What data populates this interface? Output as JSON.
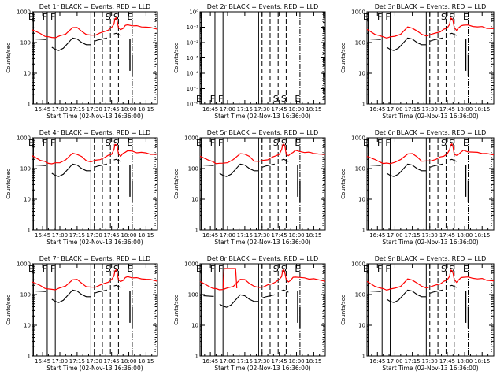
{
  "chart_data": {
    "type": "line",
    "panel_count": 9,
    "layout": "3x3 grid",
    "x_tick_labels": [
      "16:45",
      "17:00",
      "17:15",
      "17:30",
      "17:45",
      "18:00",
      "18:15"
    ],
    "x_ticks_minutes": [
      0,
      15,
      30,
      45,
      60,
      75,
      90
    ],
    "x_range_minutes_after_1645": [
      -9,
      100
    ],
    "xlabel": "Start Time (02-Nov-13 16:36:00)",
    "ylabel": "Counts/sec",
    "y_scale": "log",
    "series_colors": {
      "events": "#000000",
      "lld": "#ff0000"
    },
    "markers": [
      {
        "label": "E",
        "t": -8,
        "style": "solid"
      },
      {
        "label": "F",
        "t": 4,
        "style": "solid"
      },
      {
        "label": "F",
        "t": 11,
        "style": "solid"
      },
      {
        "label": "",
        "t": 42,
        "style": "solid"
      },
      {
        "label": "",
        "t": 45,
        "style": "dashed"
      },
      {
        "label": "",
        "t": 52,
        "style": "dashed"
      },
      {
        "label": "S",
        "t": 59,
        "style": "dashed"
      },
      {
        "label": "S",
        "t": 66,
        "style": "dashed"
      },
      {
        "label": "E",
        "t": 78,
        "style": "dashdot"
      },
      {
        "label": "",
        "t": 98,
        "style": "dotted"
      }
    ],
    "panels": [
      {
        "title": "Det 1r  BLACK = Events, RED = LLD",
        "ylim": [
          1,
          1000
        ],
        "ytick_labels": [
          "1",
          "10",
          "100",
          "1000"
        ],
        "has_data": true,
        "variant": "normal"
      },
      {
        "title": "Det 2r  BLACK = Events, RED = LLD",
        "ylim": [
          1e-06,
          1
        ],
        "ytick_labels": [
          "10⁻⁶",
          "10⁻⁵",
          "10⁻⁴",
          "10⁻³",
          "10⁻²",
          "10⁻¹",
          "10⁰"
        ],
        "has_data": false,
        "variant": "empty"
      },
      {
        "title": "Det 3r  BLACK = Events, RED = LLD",
        "ylim": [
          1,
          1000
        ],
        "ytick_labels": [
          "1",
          "10",
          "100",
          "1000"
        ],
        "has_data": true,
        "variant": "normal"
      },
      {
        "title": "Det 4r  BLACK = Events, RED = LLD",
        "ylim": [
          1,
          1000
        ],
        "ytick_labels": [
          "1",
          "10",
          "100",
          "1000"
        ],
        "has_data": true,
        "variant": "normal"
      },
      {
        "title": "Det 5r  BLACK = Events, RED = LLD",
        "ylim": [
          1,
          1000
        ],
        "ytick_labels": [
          "1",
          "10",
          "100",
          "1000"
        ],
        "has_data": true,
        "variant": "normal"
      },
      {
        "title": "Det 6r  BLACK = Events, RED = LLD",
        "ylim": [
          1,
          1000
        ],
        "ytick_labels": [
          "1",
          "10",
          "100",
          "1000"
        ],
        "has_data": true,
        "variant": "normal"
      },
      {
        "title": "Det 7r  BLACK = Events, RED = LLD",
        "ylim": [
          1,
          1000
        ],
        "ytick_labels": [
          "1",
          "10",
          "100",
          "1000"
        ],
        "has_data": true,
        "variant": "normal"
      },
      {
        "title": "Det 8r  BLACK = Events, RED = LLD",
        "ylim": [
          1,
          1000
        ],
        "ytick_labels": [
          "1",
          "10",
          "100",
          "1000"
        ],
        "has_data": true,
        "variant": "det8"
      },
      {
        "title": "Det 9r  BLACK = Events, RED = LLD",
        "ylim": [
          1,
          1000
        ],
        "ytick_labels": [
          "1",
          "10",
          "100",
          "1000"
        ],
        "has_data": true,
        "variant": "normal"
      }
    ],
    "lld_shape": {
      "t": [
        -9,
        -2,
        2,
        5,
        8,
        11,
        15,
        20,
        26,
        30,
        34,
        38,
        42,
        46,
        50,
        54,
        57,
        60,
        62,
        63,
        64,
        65,
        66,
        68,
        70,
        72,
        74,
        78,
        82,
        86,
        90,
        94,
        100
      ],
      "v": [
        260,
        190,
        165,
        150,
        145,
        148,
        160,
        190,
        310,
        300,
        240,
        180,
        170,
        180,
        200,
        230,
        260,
        300,
        400,
        600,
        620,
        500,
        300,
        260,
        300,
        350,
        380,
        360,
        340,
        330,
        320,
        300,
        280
      ]
    },
    "events_segments": [
      {
        "t": [
          -6,
          -2,
          2,
          3
        ],
        "v": [
          130,
          128,
          125,
          125
        ]
      },
      {
        "t": [
          8,
          11,
          14,
          18,
          22,
          26,
          30,
          34,
          38,
          42
        ],
        "v": [
          70,
          60,
          55,
          65,
          95,
          140,
          130,
          100,
          85,
          85
        ]
      },
      {
        "t": [
          45,
          48,
          52,
          56
        ],
        "v": [
          110,
          120,
          130,
          140
        ]
      },
      {
        "t": [
          62,
          64,
          66,
          68
        ],
        "v": [
          190,
          200,
          185,
          170
        ]
      }
    ],
    "events_vertical_segments": [
      {
        "t": 76,
        "v": [
          12,
          130
        ]
      },
      {
        "t": 78,
        "v": [
          8,
          40
        ]
      }
    ],
    "det8_lld_bump": {
      "t": [
        11,
        12,
        22,
        23
      ],
      "v": [
        160,
        700,
        700,
        160
      ]
    }
  }
}
